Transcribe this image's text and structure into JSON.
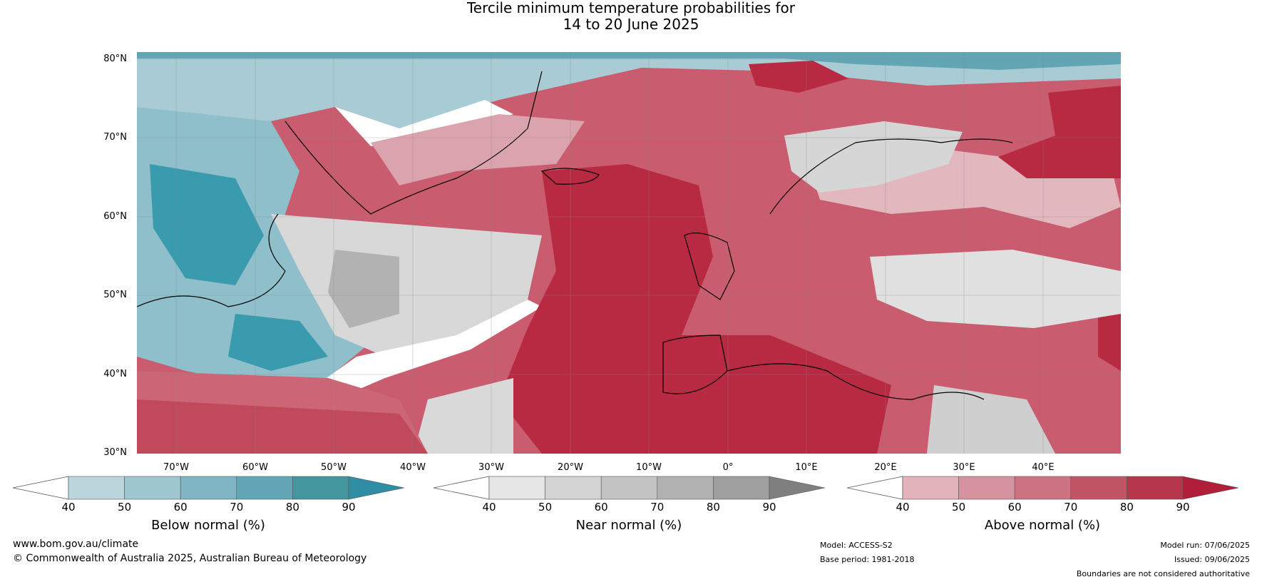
{
  "title": {
    "line1": "Tercile minimum temperature probabilities for",
    "line2": "14 to 20 June 2025"
  },
  "map": {
    "lat_labels": [
      "80°N",
      "70°N",
      "60°N",
      "50°N",
      "40°N",
      "30°N"
    ],
    "lon_labels": [
      "70°W",
      "60°W",
      "50°W",
      "40°W",
      "30°W",
      "20°W",
      "10°W",
      "0°",
      "10°E",
      "20°E",
      "30°E",
      "40°E"
    ],
    "colors": {
      "ocean_white": "#ffffff",
      "below_strong": "#3a9aae",
      "below_light": "#a8cdd6",
      "near_light": "#dedede",
      "near_mid": "#b5b5b5",
      "above_light": "#d99aa4",
      "above_mid": "#cc6677",
      "above_strong": "#b82a42",
      "coastline": "#000000",
      "borders": "#888888"
    }
  },
  "colorbars": [
    {
      "title": "Below normal (%)",
      "ticks": [
        "40",
        "50",
        "60",
        "70",
        "80",
        "90"
      ],
      "colors": [
        "#bcd6dd",
        "#9ec6cf",
        "#7fb5c2",
        "#62a6b6",
        "#44979f",
        "#2f8ea4"
      ]
    },
    {
      "title": "Near normal (%)",
      "ticks": [
        "40",
        "50",
        "60",
        "70",
        "80",
        "90"
      ],
      "colors": [
        "#e6e6e6",
        "#d4d4d4",
        "#c3c3c3",
        "#b1b1b1",
        "#9f9f9f",
        "#7f7f7f"
      ]
    },
    {
      "title": "Above normal (%)",
      "ticks": [
        "40",
        "50",
        "60",
        "70",
        "80",
        "90"
      ],
      "colors": [
        "#e3b3bb",
        "#d6929e",
        "#cb7380",
        "#c05565",
        "#b6364b",
        "#b01e3a"
      ]
    }
  ],
  "footer": {
    "website": "www.bom.gov.au/climate",
    "copyright": "© Commonwealth of Australia 2025, Australian Bureau of Meteorology",
    "model": "Model: ACCESS-S2",
    "base_period": "Base period: 1981-2018",
    "model_run": "Model run: 07/06/2025",
    "issued": "Issued: 09/06/2025",
    "disclaimer": "Boundaries are not considered authoritative"
  }
}
